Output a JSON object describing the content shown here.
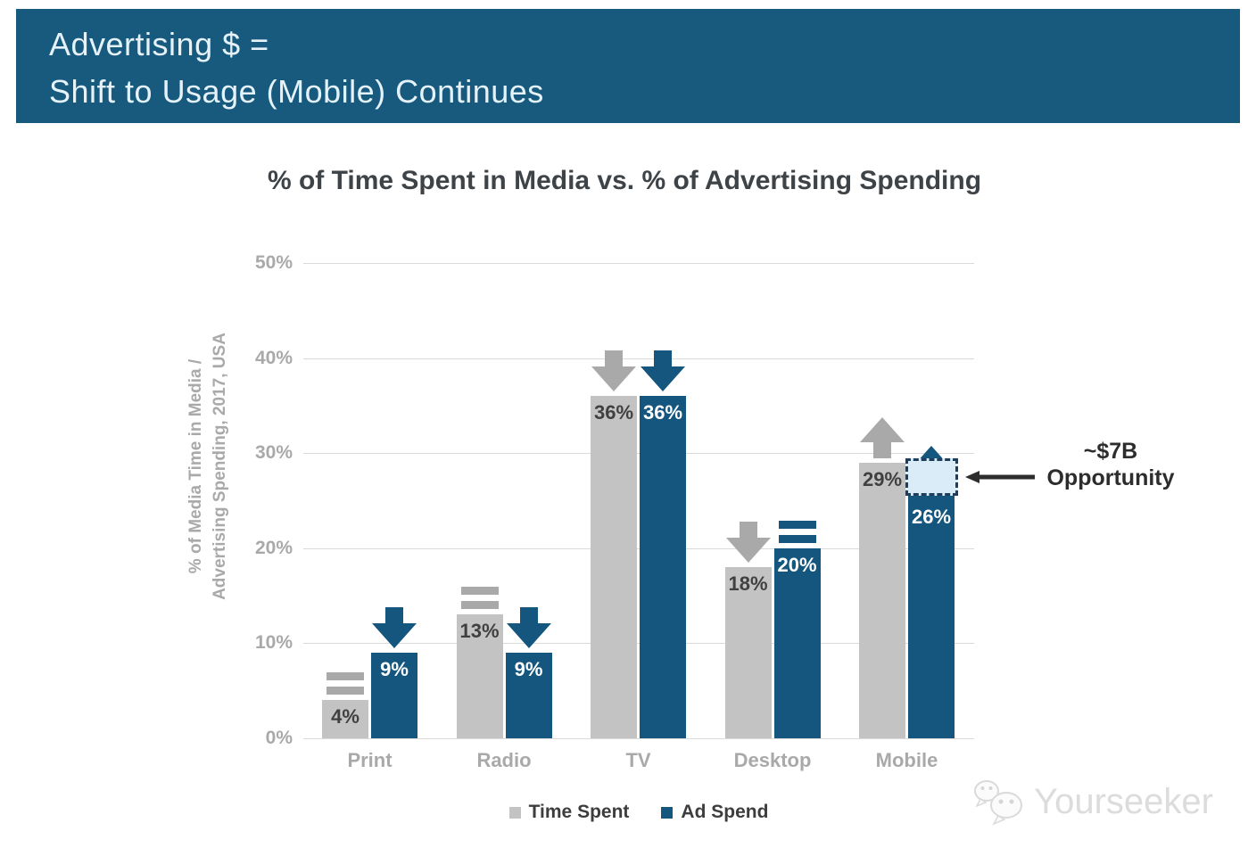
{
  "banner": {
    "line1": "Advertising $ =",
    "line2": "Shift to Usage (Mobile) Continues"
  },
  "chart_data": {
    "type": "bar",
    "title": "% of Time Spent in Media vs. % of Advertising Spending",
    "ylabel_lines": [
      "% of Media Time in Media /",
      "Advertising Spending, 2017, USA"
    ],
    "categories": [
      "Print",
      "Radio",
      "TV",
      "Desktop",
      "Mobile"
    ],
    "series": [
      {
        "name": "Time Spent",
        "color": "#c3c3c3",
        "label_color": "#404040",
        "trend_color": "#a9a9a9",
        "values": [
          4,
          13,
          36,
          18,
          29
        ],
        "value_labels": [
          "4%",
          "13%",
          "36%",
          "18%",
          "29%"
        ],
        "trend_icons": [
          "equal",
          "equal",
          "down",
          "down",
          "up"
        ]
      },
      {
        "name": "Ad Spend",
        "color": "#14567e",
        "label_color": "#ffffff",
        "trend_color": "#14567e",
        "values": [
          9,
          9,
          36,
          20,
          26
        ],
        "value_labels": [
          "9%",
          "9%",
          "36%",
          "20%",
          "26%"
        ],
        "trend_icons": [
          "down",
          "down",
          "down",
          "equal",
          "up"
        ]
      }
    ],
    "y_ticks": [
      {
        "label": "50%",
        "value": 50
      },
      {
        "label": "40%",
        "value": 40
      },
      {
        "label": "30%",
        "value": 30
      },
      {
        "label": "20%",
        "value": 20
      },
      {
        "label": "10%",
        "value": 10
      },
      {
        "label": "0%",
        "value": 0
      }
    ],
    "ylim": [
      0,
      50
    ],
    "grid": true,
    "legend_position": "bottom",
    "annotation": {
      "line1": "~$7B",
      "line2": "Opportunity",
      "category": "Mobile",
      "series": "Ad Spend",
      "from_value": 26,
      "to_value": 29,
      "box_fill": "#d9ecf8",
      "box_border": "#1d3e5e"
    }
  },
  "legend": {
    "items": [
      {
        "label": "Time Spent",
        "color": "#c3c3c3"
      },
      {
        "label": "Ad Spend",
        "color": "#14567e"
      }
    ]
  },
  "watermark": {
    "text": "Yourseeker"
  },
  "colors": {
    "banner_bg": "#175a7e",
    "banner_text": "#e6f2fa",
    "grid": "#dadada",
    "axis_text": "#a9a9a9",
    "title_text": "#3e4348",
    "annotation_text": "#2d2d2d"
  }
}
